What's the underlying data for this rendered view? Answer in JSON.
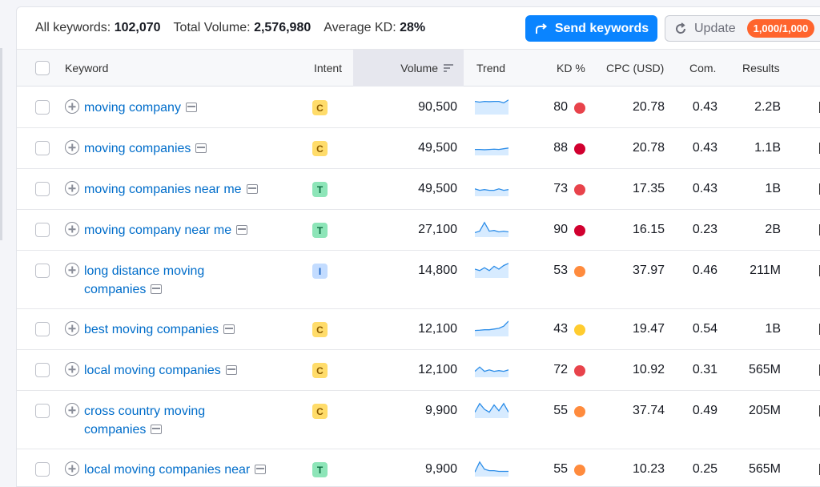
{
  "summary": {
    "all_keywords_label": "All keywords:",
    "all_keywords_value": "102,070",
    "total_volume_label": "Total Volume:",
    "total_volume_value": "2,576,980",
    "avg_kd_label": "Average KD:",
    "avg_kd_value": "28%"
  },
  "actions": {
    "send_label": "Send keywords",
    "update_label": "Update",
    "update_badge": "1,000/1,000"
  },
  "columns": {
    "keyword": "Keyword",
    "intent": "Intent",
    "volume": "Volume",
    "trend": "Trend",
    "kd": "KD %",
    "cpc": "CPC (USD)",
    "com": "Com.",
    "results": "Results"
  },
  "colors": {
    "accent": "#0a84ff",
    "link": "#006dca",
    "kd_red": "#e8434b",
    "kd_dark_red": "#d1002f",
    "kd_orange": "#ff8b3d",
    "kd_yellow": "#ffcc2f",
    "badge": "#ff642d"
  },
  "rows": [
    {
      "keyword": "moving company",
      "intent": "C",
      "volume": "90,500",
      "kd": "80",
      "kd_color": "#e8434b",
      "cpc": "20.78",
      "com": "0.43",
      "results": "2.2B",
      "trend": [
        0.8,
        0.75,
        0.8,
        0.78,
        0.8,
        0.8,
        0.7,
        0.9
      ]
    },
    {
      "keyword": "moving companies",
      "intent": "C",
      "volume": "49,500",
      "kd": "88",
      "kd_color": "#d1002f",
      "cpc": "20.78",
      "com": "0.43",
      "results": "1.1B",
      "trend": [
        0.3,
        0.3,
        0.28,
        0.3,
        0.32,
        0.3,
        0.35,
        0.4
      ]
    },
    {
      "keyword": "moving companies near me",
      "intent": "T",
      "volume": "49,500",
      "kd": "73",
      "kd_color": "#e8434b",
      "cpc": "17.35",
      "com": "0.43",
      "results": "1B",
      "trend": [
        0.4,
        0.3,
        0.35,
        0.3,
        0.3,
        0.4,
        0.3,
        0.35
      ]
    },
    {
      "keyword": "moving company near me",
      "intent": "T",
      "volume": "27,100",
      "kd": "90",
      "kd_color": "#d1002f",
      "cpc": "16.15",
      "com": "0.23",
      "results": "2B",
      "trend": [
        0.2,
        0.3,
        0.9,
        0.3,
        0.35,
        0.25,
        0.3,
        0.25
      ]
    },
    {
      "keyword": "long distance moving companies",
      "intent": "I",
      "volume": "14,800",
      "kd": "53",
      "kd_color": "#ff8b3d",
      "cpc": "37.97",
      "com": "0.46",
      "results": "211M",
      "trend": [
        0.5,
        0.4,
        0.6,
        0.4,
        0.7,
        0.5,
        0.75,
        0.9
      ]
    },
    {
      "keyword": "best moving companies",
      "intent": "C",
      "volume": "12,100",
      "kd": "43",
      "kd_color": "#ffcc2f",
      "cpc": "19.47",
      "com": "0.54",
      "results": "1B",
      "trend": [
        0.3,
        0.32,
        0.35,
        0.35,
        0.4,
        0.45,
        0.6,
        0.95
      ]
    },
    {
      "keyword": "local moving companies",
      "intent": "C",
      "volume": "12,100",
      "kd": "72",
      "kd_color": "#e8434b",
      "cpc": "10.92",
      "com": "0.31",
      "results": "565M",
      "trend": [
        0.3,
        0.6,
        0.3,
        0.4,
        0.3,
        0.35,
        0.3,
        0.4
      ]
    },
    {
      "keyword": "cross country moving companies",
      "intent": "C",
      "volume": "9,900",
      "kd": "55",
      "kd_color": "#ff8b3d",
      "cpc": "37.74",
      "com": "0.49",
      "results": "205M",
      "trend": [
        0.3,
        0.9,
        0.5,
        0.3,
        0.8,
        0.4,
        0.9,
        0.3
      ]
    },
    {
      "keyword": "local moving companies near",
      "intent": "T",
      "volume": "9,900",
      "kd": "55",
      "kd_color": "#ff8b3d",
      "cpc": "10.23",
      "com": "0.25",
      "results": "565M",
      "trend": [
        0.2,
        0.9,
        0.4,
        0.3,
        0.3,
        0.25,
        0.25,
        0.25
      ]
    }
  ]
}
